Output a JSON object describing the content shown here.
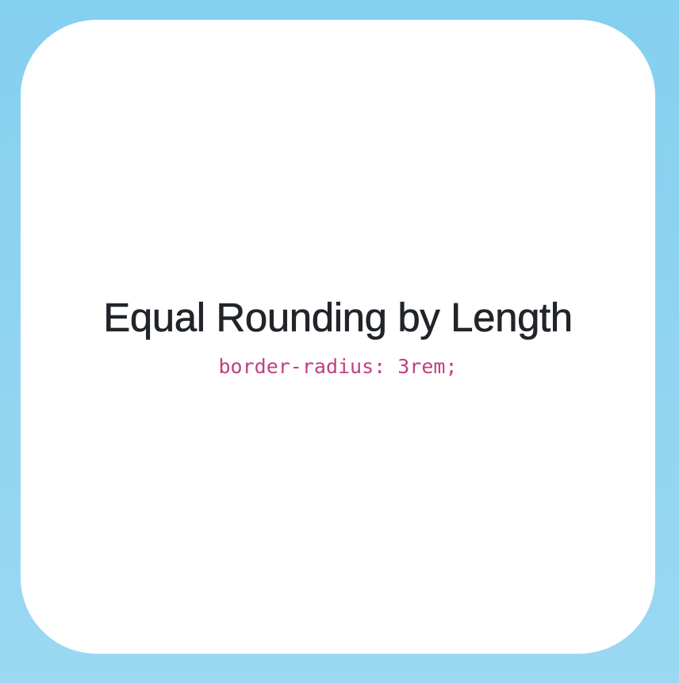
{
  "card": {
    "title": "Equal Rounding by Length",
    "code": "border-radius: 3rem;"
  },
  "colors": {
    "background_top": "#84d0f0",
    "background_bottom": "#9bd8f2",
    "card": "#ffffff",
    "title_text": "#212529",
    "code_text": "#c1407e"
  }
}
